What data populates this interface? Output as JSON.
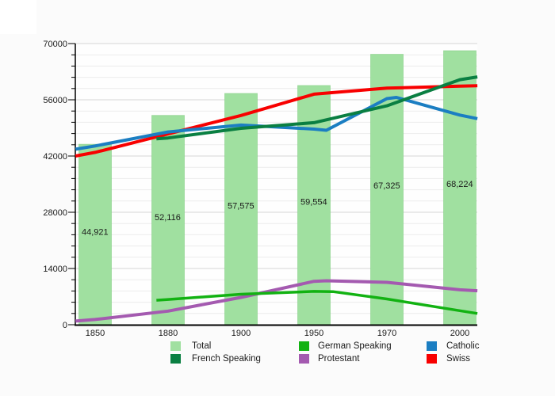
{
  "figure": {
    "background": "#fbfbfb",
    "plot_background": "#fefefe",
    "axis_color": "#000000",
    "grid_minor_color": "#ececec",
    "grid_major_color": "#d6d6d6",
    "text_color": "#1a1a1a"
  },
  "chart_data": {
    "type": "combo-bar-line",
    "title": "",
    "xlabel": "",
    "ylabel": "",
    "categories": [
      "1850",
      "1880",
      "1900",
      "1950",
      "1970",
      "2000"
    ],
    "y_axis": {
      "min": 0,
      "max": 70000,
      "major_tick_interval": 14000,
      "minor_tick_interval": 2800,
      "tick_labels": [
        "0",
        "14000",
        "28000",
        "42000",
        "56000",
        "70000"
      ]
    },
    "grid": {
      "horizontal_minor": true,
      "horizontal_major": true,
      "vertical": false
    },
    "bar_series": {
      "name": "Total",
      "color": "#a0e0a0",
      "border_color": "#86cf86",
      "values": [
        44921,
        52116,
        57575,
        59554,
        67325,
        68224
      ],
      "value_labels": [
        "44,921",
        "52,116",
        "57,575",
        "59,554",
        "67,325",
        "68,224"
      ]
    },
    "line_series": [
      {
        "name": "Protestant",
        "color": "#a45ab0",
        "width": 4,
        "values": [
          1300,
          3400,
          6800,
          10800,
          10550,
          8700
        ],
        "points": [
          [
            -0.27,
            900
          ],
          [
            0,
            1300
          ],
          [
            1,
            3400
          ],
          [
            2,
            6800
          ],
          [
            3,
            10800
          ],
          [
            3.17,
            10950
          ],
          [
            4,
            10550
          ],
          [
            5,
            8700
          ],
          [
            5.24,
            8450
          ]
        ]
      },
      {
        "name": "German Speaking",
        "color": "#12b212",
        "width": 3.5,
        "values": [
          null,
          6300,
          7600,
          8300,
          6400,
          3500
        ],
        "points": [
          [
            0.84,
            6100
          ],
          [
            1,
            6300
          ],
          [
            2,
            7600
          ],
          [
            3,
            8300
          ],
          [
            3.26,
            8250
          ],
          [
            4,
            6400
          ],
          [
            5,
            3500
          ],
          [
            5.24,
            2800
          ]
        ]
      },
      {
        "name": "Swiss",
        "color": "#f80000",
        "width": 4,
        "values": [
          42900,
          47500,
          52100,
          57400,
          58900,
          59400
        ],
        "points": [
          [
            -0.27,
            42000
          ],
          [
            0,
            42900
          ],
          [
            1,
            47500
          ],
          [
            2,
            52100
          ],
          [
            3,
            57400
          ],
          [
            4,
            58900
          ],
          [
            5,
            59400
          ],
          [
            5.24,
            59500
          ]
        ]
      },
      {
        "name": "Catholic",
        "color": "#1b7ec2",
        "width": 4,
        "values": [
          44500,
          48000,
          49700,
          48700,
          56300,
          52200
        ],
        "points": [
          [
            -0.27,
            43700
          ],
          [
            0,
            44500
          ],
          [
            1,
            48000
          ],
          [
            2,
            49700
          ],
          [
            3,
            48700
          ],
          [
            3.17,
            48400
          ],
          [
            4,
            56300
          ],
          [
            4.13,
            56600
          ],
          [
            5,
            52200
          ],
          [
            5.24,
            51300
          ]
        ]
      },
      {
        "name": "French Speaking",
        "color": "#0a7f42",
        "width": 4,
        "values": [
          null,
          46500,
          48900,
          50300,
          54500,
          61000
        ],
        "points": [
          [
            0.84,
            46300
          ],
          [
            1,
            46500
          ],
          [
            2,
            48900
          ],
          [
            3,
            50300
          ],
          [
            4,
            54500
          ],
          [
            5,
            61000
          ],
          [
            5.24,
            61700
          ]
        ]
      }
    ],
    "legend_position": "bottom"
  },
  "legend": {
    "items": [
      {
        "label": "Total",
        "color": "#a0e0a0"
      },
      {
        "label": "French Speaking",
        "color": "#0a7f42"
      },
      {
        "label": "German Speaking",
        "color": "#12b212"
      },
      {
        "label": "Protestant",
        "color": "#a45ab0"
      },
      {
        "label": "Catholic",
        "color": "#1b7ec2"
      },
      {
        "label": "Swiss",
        "color": "#f80000"
      }
    ]
  }
}
